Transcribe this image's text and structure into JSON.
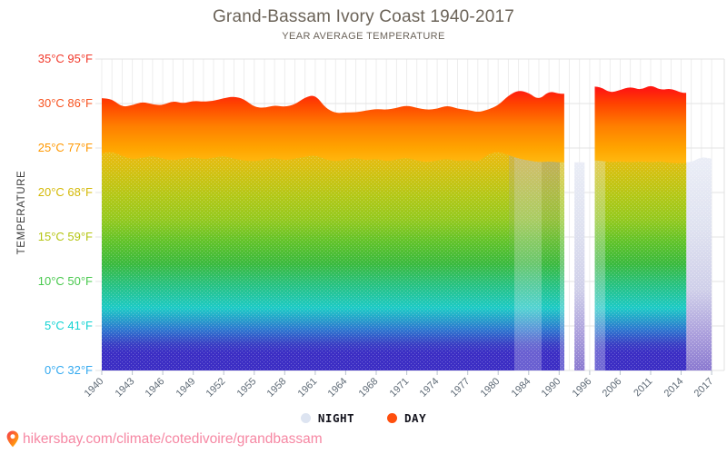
{
  "header": {
    "title": "Grand-Bassam Ivory Coast 1940-2017",
    "subtitle": "YEAR AVERAGE TEMPERATURE"
  },
  "y_axis": {
    "title": "TEMPERATURE",
    "ticks": [
      {
        "label": "35°C 95°F",
        "c": 35,
        "color": "#f2392b"
      },
      {
        "label": "30°C 86°F",
        "c": 30,
        "color": "#f75321"
      },
      {
        "label": "25°C 77°F",
        "c": 25,
        "color": "#ff9800"
      },
      {
        "label": "20°C 68°F",
        "c": 20,
        "color": "#d4b908"
      },
      {
        "label": "15°C 59°F",
        "c": 15,
        "color": "#b5c513"
      },
      {
        "label": "10°C 50°F",
        "c": 10,
        "color": "#49c94e"
      },
      {
        "label": "5°C 41°F",
        "c": 5,
        "color": "#12d2d2"
      },
      {
        "label": "0°C 32°F",
        "c": 0,
        "color": "#35aaf0"
      }
    ]
  },
  "x_axis": {
    "labels": [
      "1940",
      "1943",
      "1946",
      "1949",
      "1952",
      "1955",
      "1958",
      "1961",
      "1964",
      "1968",
      "1971",
      "1974",
      "1977",
      "1980",
      "1984",
      "1990",
      "1996",
      "2006",
      "2011",
      "2014",
      "2017"
    ],
    "label_step_categories": 3,
    "category_count": 61
  },
  "chart_data": {
    "type": "area",
    "title": "Grand-Bassam Ivory Coast 1940-2017",
    "subtitle": "YEAR AVERAGE TEMPERATURE",
    "ylabel": "TEMPERATURE",
    "unit": "°C",
    "ylim": [
      0,
      35
    ],
    "gridlines_c": [
      35,
      30,
      25,
      20,
      15,
      10,
      5,
      0
    ],
    "x_tick_labels": [
      "1940",
      "1943",
      "1946",
      "1949",
      "1952",
      "1955",
      "1958",
      "1961",
      "1964",
      "1968",
      "1971",
      "1974",
      "1977",
      "1980",
      "1984",
      "1990",
      "1996",
      "2006",
      "2011",
      "2014",
      "2017"
    ],
    "series": [
      {
        "name": "DAY",
        "color": "#ff4f0e",
        "values": [
          30.6,
          30.5,
          29.6,
          29.8,
          30.2,
          29.9,
          29.8,
          30.3,
          30.0,
          30.3,
          30.2,
          30.3,
          30.6,
          30.8,
          30.5,
          29.6,
          29.5,
          29.8,
          29.6,
          29.9,
          30.7,
          31.0,
          29.5,
          28.9,
          29.0,
          29.0,
          29.2,
          29.4,
          29.3,
          29.5,
          29.8,
          29.5,
          29.3,
          29.4,
          29.8,
          29.4,
          29.3,
          29.0,
          29.3,
          29.8,
          30.9,
          31.5,
          31.2,
          30.4,
          31.4,
          31.1,
          null,
          null,
          null,
          31.9,
          31.2,
          31.5,
          31.9,
          31.5,
          32.1,
          31.5,
          31.7,
          31.2,
          null,
          null,
          null
        ]
      },
      {
        "name": "NIGHT",
        "color": "#dde4f1",
        "values": [
          24.4,
          24.6,
          24.1,
          23.7,
          23.9,
          24.1,
          23.8,
          23.6,
          23.8,
          24.0,
          23.7,
          23.9,
          24.1,
          23.8,
          23.6,
          23.5,
          23.7,
          23.9,
          23.6,
          23.8,
          24.0,
          24.2,
          23.7,
          23.5,
          23.7,
          23.9,
          23.6,
          23.8,
          23.5,
          23.7,
          23.9,
          23.6,
          23.4,
          23.6,
          23.8,
          23.5,
          23.7,
          23.4,
          24.3,
          24.6,
          24.2,
          23.8,
          23.6,
          23.4,
          23.5,
          23.4,
          null,
          23.4,
          null,
          23.6,
          23.4,
          23.5,
          23.4,
          23.5,
          23.4,
          23.5,
          23.3,
          23.3,
          23.4,
          24.0,
          23.8
        ]
      }
    ],
    "gradient": [
      [
        35,
        "#ff0a0a"
      ],
      [
        31.5,
        "#ff1a10"
      ],
      [
        30,
        "#ff4200"
      ],
      [
        27.5,
        "#ff7e00"
      ],
      [
        25,
        "#ffa400"
      ],
      [
        23.5,
        "#ffb70e"
      ],
      [
        22,
        "#e7bb10"
      ],
      [
        20,
        "#cfc213"
      ],
      [
        17.5,
        "#b2c818"
      ],
      [
        15,
        "#95c91f"
      ],
      [
        12.5,
        "#62c32a"
      ],
      [
        10,
        "#3cba3e"
      ],
      [
        7.5,
        "#28c285"
      ],
      [
        5,
        "#1ecac6"
      ],
      [
        2.5,
        "#2f74cf"
      ],
      [
        1,
        "#3a41c4"
      ],
      [
        0,
        "#3c2ec4"
      ]
    ],
    "night_only_gradient": [
      [
        23.5,
        "#eaedf6"
      ],
      [
        16,
        "#dfe2f0"
      ],
      [
        9,
        "#cfcfe9"
      ],
      [
        4,
        "#ab9fdc"
      ],
      [
        0,
        "#8a79d0"
      ]
    ],
    "legend_position": "bottom"
  },
  "artifacts": {
    "whiten_bands": [
      [
        566,
        596,
        0.26
      ],
      [
        616,
        626,
        0.3
      ],
      [
        652,
        666,
        0.3
      ]
    ],
    "gray_cap_bands": [
      [
        560,
        596,
        0.3
      ],
      [
        596,
        616,
        0.46
      ]
    ]
  },
  "legend": {
    "items": [
      {
        "label": "NIGHT",
        "color": "#dde4f1"
      },
      {
        "label": "DAY",
        "color": "#ff4f0e"
      }
    ]
  },
  "footer": {
    "url": "hikersbay.com/climate/cotedivoire/grandbassam"
  }
}
